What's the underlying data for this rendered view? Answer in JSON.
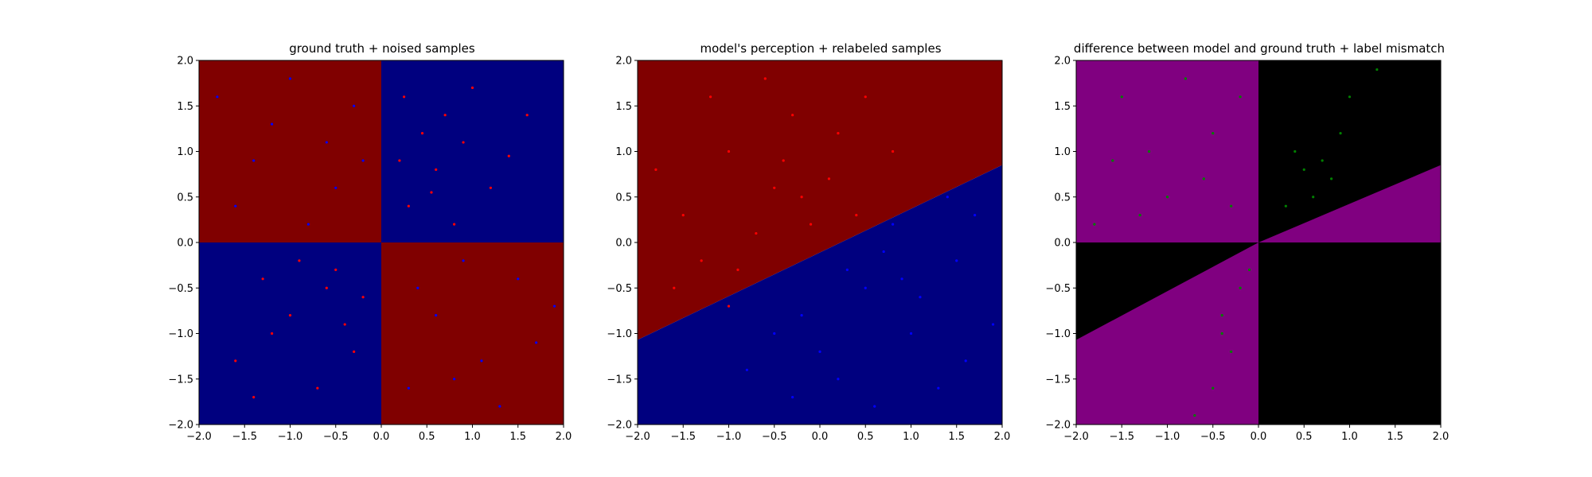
{
  "chart_data": [
    {
      "type": "scatter",
      "title": "ground truth + noised samples",
      "xlabel": "",
      "ylabel": "",
      "xlim": [
        -2.0,
        2.0
      ],
      "ylim": [
        -2.0,
        2.0
      ],
      "xticks": [
        "−2.0",
        "−1.5",
        "−1.0",
        "−0.5",
        "0.0",
        "0.5",
        "1.0",
        "1.5",
        "2.0"
      ],
      "yticks": [
        "−2.0",
        "−1.5",
        "−1.0",
        "−0.5",
        "0.0",
        "0.5",
        "1.0",
        "1.5",
        "2.0"
      ],
      "grid": false,
      "background": "checkerboard split at x=0 and y=0; red (x<0,y>0) and (x>0,y<0), blue elsewhere",
      "region_colors": {
        "red": "#800000",
        "blue": "#00007f"
      },
      "series": [
        {
          "color": "#ff0000",
          "points": [
            [
              0.25,
              1.6
            ],
            [
              0.45,
              1.2
            ],
            [
              0.6,
              0.8
            ],
            [
              0.9,
              1.1
            ],
            [
              1.2,
              0.6
            ],
            [
              0.3,
              0.4
            ],
            [
              1.6,
              1.4
            ],
            [
              0.8,
              0.2
            ],
            [
              1.4,
              0.95
            ],
            [
              0.55,
              0.55
            ],
            [
              -0.5,
              -0.3
            ],
            [
              -1.0,
              -0.8
            ],
            [
              -0.3,
              -1.2
            ],
            [
              -1.3,
              -0.4
            ],
            [
              -0.7,
              -1.6
            ],
            [
              -0.2,
              -0.6
            ],
            [
              -1.6,
              -1.3
            ],
            [
              -0.9,
              -0.2
            ],
            [
              -0.4,
              -0.9
            ],
            [
              -1.2,
              -1.0
            ],
            [
              0.2,
              0.9
            ],
            [
              1.0,
              1.7
            ],
            [
              -0.6,
              -0.5
            ],
            [
              -1.4,
              -1.7
            ],
            [
              0.7,
              1.4
            ]
          ]
        },
        {
          "color": "#0000ff",
          "points": [
            [
              -0.5,
              0.6
            ],
            [
              -1.2,
              1.3
            ],
            [
              -0.3,
              1.5
            ],
            [
              -1.6,
              0.4
            ],
            [
              -0.8,
              0.2
            ],
            [
              -1.0,
              1.8
            ],
            [
              -0.2,
              0.9
            ],
            [
              0.6,
              -0.8
            ],
            [
              1.1,
              -1.3
            ],
            [
              0.3,
              -1.6
            ],
            [
              1.5,
              -0.4
            ],
            [
              0.9,
              -0.2
            ],
            [
              1.7,
              -1.1
            ],
            [
              0.4,
              -0.5
            ],
            [
              1.3,
              -1.8
            ],
            [
              -1.4,
              0.9
            ],
            [
              -0.6,
              1.1
            ],
            [
              0.8,
              -1.5
            ],
            [
              1.9,
              -0.7
            ],
            [
              -1.8,
              1.6
            ]
          ]
        }
      ]
    },
    {
      "type": "scatter",
      "title": "model's perception + relabeled samples",
      "xlabel": "",
      "ylabel": "",
      "xlim": [
        -2.0,
        2.0
      ],
      "ylim": [
        -2.0,
        2.0
      ],
      "xticks": [
        "−2.0",
        "−1.5",
        "−1.0",
        "−0.5",
        "0.0",
        "0.5",
        "1.0",
        "1.5",
        "2.0"
      ],
      "yticks": [
        "−2.0",
        "−1.5",
        "−1.0",
        "−0.5",
        "0.0",
        "0.5",
        "1.0",
        "1.5",
        "2.0"
      ],
      "grid": false,
      "background": "split by line from (-2,-1.07) to (2,0.85); red above, blue below",
      "boundary": [
        [
          -2.0,
          -1.07
        ],
        [
          2.0,
          0.85
        ]
      ],
      "region_colors": {
        "red": "#800000",
        "blue": "#00007f"
      },
      "series": [
        {
          "color": "#ff0000",
          "points": [
            [
              -0.5,
              0.6
            ],
            [
              -1.0,
              1.0
            ],
            [
              -0.3,
              1.4
            ],
            [
              -1.5,
              0.3
            ],
            [
              -0.7,
              0.1
            ],
            [
              0.2,
              1.2
            ],
            [
              -1.2,
              1.6
            ],
            [
              -0.2,
              0.5
            ],
            [
              0.5,
              1.6
            ],
            [
              -0.9,
              -0.3
            ],
            [
              -1.6,
              -0.5
            ],
            [
              -0.4,
              0.9
            ],
            [
              0.1,
              0.7
            ],
            [
              -1.3,
              -0.2
            ],
            [
              -0.6,
              1.8
            ],
            [
              0.4,
              0.3
            ],
            [
              -1.8,
              0.8
            ],
            [
              -0.1,
              0.2
            ],
            [
              0.8,
              1.0
            ],
            [
              -1.0,
              -0.7
            ]
          ]
        },
        {
          "color": "#0000ff",
          "points": [
            [
              0.5,
              -0.5
            ],
            [
              1.0,
              -1.0
            ],
            [
              0.2,
              -1.5
            ],
            [
              1.5,
              -0.2
            ],
            [
              0.8,
              0.2
            ],
            [
              -0.5,
              -1.0
            ],
            [
              1.3,
              -1.6
            ],
            [
              0.3,
              -0.3
            ],
            [
              1.7,
              0.3
            ],
            [
              -0.2,
              -0.8
            ],
            [
              0.6,
              -1.8
            ],
            [
              1.1,
              -0.6
            ],
            [
              -0.8,
              -1.4
            ],
            [
              1.9,
              -0.9
            ],
            [
              0.0,
              -1.2
            ],
            [
              1.4,
              0.5
            ],
            [
              0.7,
              -0.1
            ],
            [
              -0.3,
              -1.7
            ],
            [
              1.6,
              -1.3
            ],
            [
              0.9,
              -0.4
            ]
          ]
        }
      ]
    },
    {
      "type": "scatter",
      "title": "difference between model and ground truth + label mismatch",
      "xlabel": "",
      "ylabel": "",
      "xlim": [
        -2.0,
        2.0
      ],
      "ylim": [
        -2.0,
        2.0
      ],
      "xticks": [
        "−2.0",
        "−1.5",
        "−1.0",
        "−0.5",
        "0.0",
        "0.5",
        "1.0",
        "1.5",
        "2.0"
      ],
      "yticks": [
        "−2.0",
        "−1.5",
        "−1.0",
        "−0.5",
        "0.0",
        "0.5",
        "1.0",
        "1.5",
        "2.0"
      ],
      "grid": false,
      "background": "purple where model and ground truth disagree, black where they agree",
      "region_colors": {
        "purple": "#800080",
        "black": "#000000"
      },
      "series": [
        {
          "color": "#008000",
          "points": [
            [
              -1.5,
              1.6
            ],
            [
              -1.0,
              0.5
            ],
            [
              -0.5,
              1.2
            ],
            [
              -1.8,
              0.2
            ],
            [
              -0.3,
              0.4
            ],
            [
              -1.2,
              1.0
            ],
            [
              -0.8,
              1.8
            ],
            [
              -1.6,
              0.9
            ],
            [
              -0.2,
              1.6
            ],
            [
              -1.3,
              0.3
            ],
            [
              -0.6,
              0.7
            ],
            [
              0.3,
              0.4
            ],
            [
              0.5,
              0.8
            ],
            [
              0.7,
              0.9
            ],
            [
              0.9,
              1.2
            ],
            [
              0.4,
              1.0
            ],
            [
              1.0,
              1.6
            ],
            [
              0.6,
              0.5
            ],
            [
              1.3,
              1.9
            ],
            [
              0.8,
              0.7
            ],
            [
              -0.4,
              -0.8
            ],
            [
              -0.3,
              -1.2
            ],
            [
              -0.5,
              -1.6
            ],
            [
              -0.2,
              -0.5
            ],
            [
              -0.7,
              -1.9
            ],
            [
              -0.1,
              -0.3
            ],
            [
              -0.4,
              -1.0
            ]
          ]
        }
      ]
    }
  ]
}
